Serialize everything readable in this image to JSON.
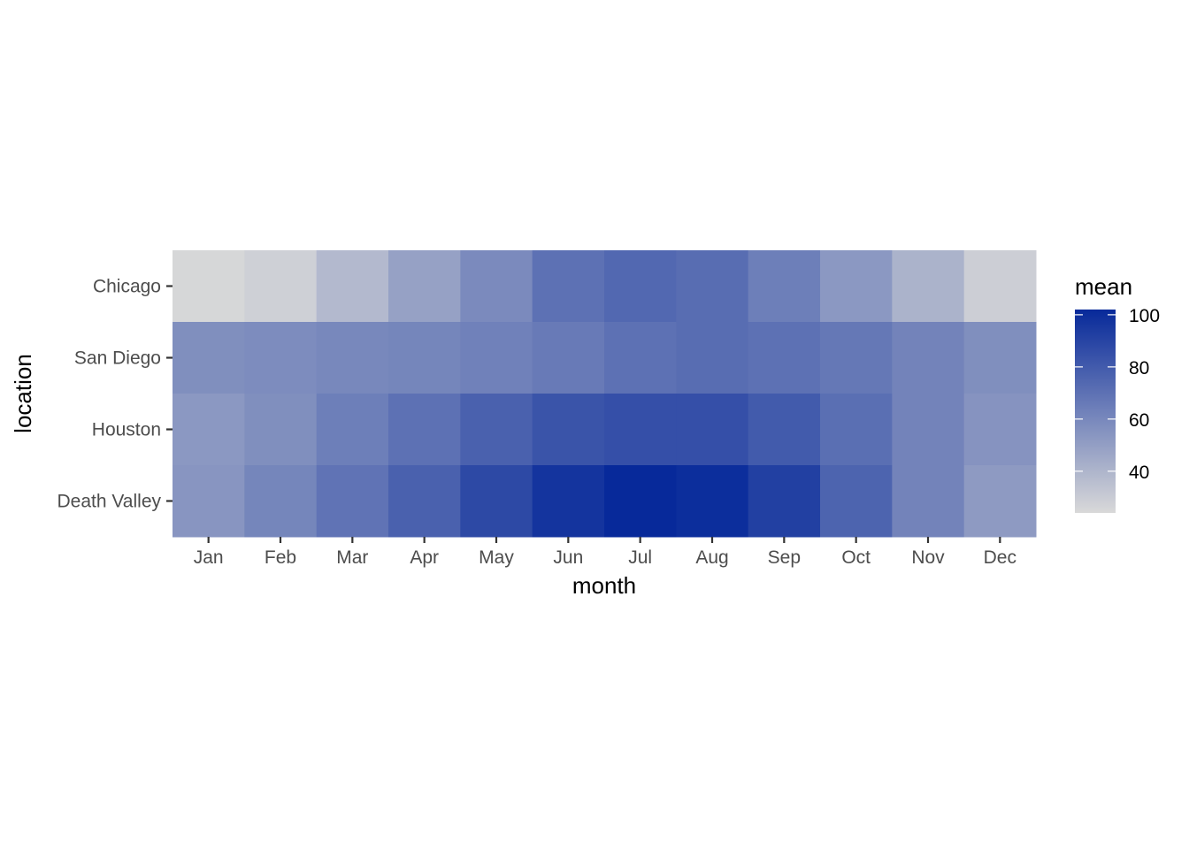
{
  "chart_data": {
    "type": "heatmap",
    "title": "",
    "xlabel": "month",
    "ylabel": "location",
    "x": [
      "Jan",
      "Feb",
      "Mar",
      "Apr",
      "May",
      "Jun",
      "Jul",
      "Aug",
      "Sep",
      "Oct",
      "Nov",
      "Dec"
    ],
    "y": [
      "Chicago",
      "San Diego",
      "Houston",
      "Death Valley"
    ],
    "values": [
      [
        25,
        28,
        38,
        49,
        59,
        70,
        74,
        72,
        64,
        53,
        41,
        29
      ],
      [
        57,
        58,
        60,
        61,
        63,
        66,
        70,
        72,
        70,
        67,
        62,
        57
      ],
      [
        53,
        57,
        64,
        70,
        77,
        83,
        85,
        85,
        80,
        71,
        62,
        55
      ],
      [
        54,
        61,
        69,
        77,
        88,
        97,
        102,
        100,
        92,
        76,
        62,
        52
      ]
    ],
    "legend": {
      "title": "mean",
      "ticks": [
        40,
        60,
        80,
        100
      ],
      "range": [
        24,
        102
      ],
      "low_color": "#d9d9d9",
      "high_color": "#07299a",
      "position": "right"
    },
    "grid": false
  }
}
